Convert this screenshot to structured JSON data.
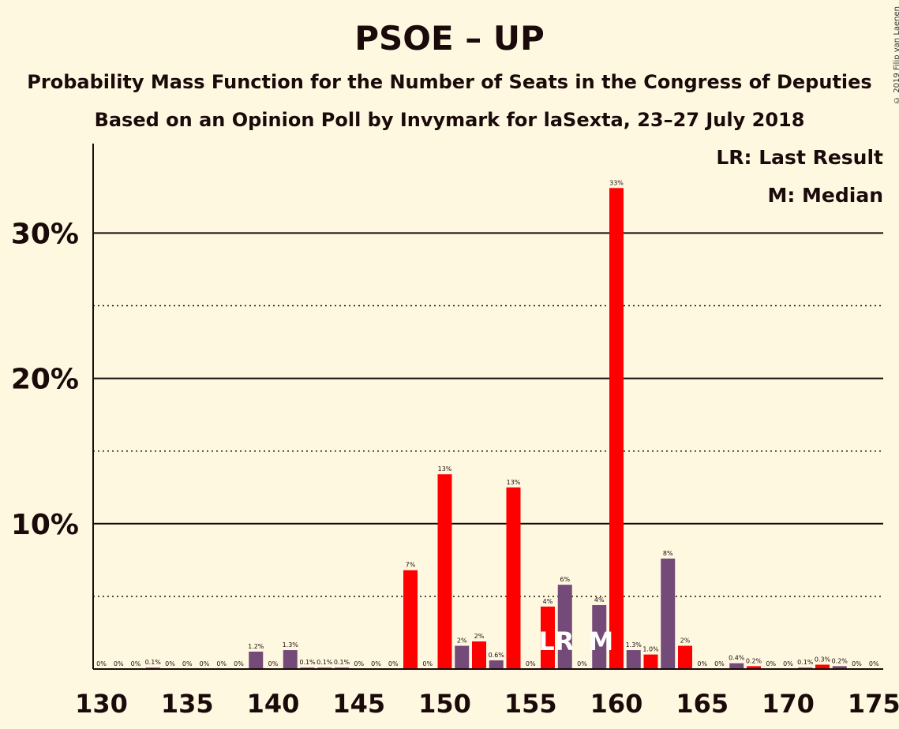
{
  "title": "PSOE – UP",
  "subtitle1": "Probability Mass Function for the Number of Seats in the Congress of Deputies",
  "subtitle2": "Based on an Opinion Poll by Invymark for laSexta, 23–27 July 2018",
  "copyright": "© 2019 Filip van Laenen",
  "legend": {
    "lr": "LR: Last Result",
    "m": "M: Median"
  },
  "colors": {
    "red": "#FF0000",
    "purple": "#744B78",
    "background": "#FFF8E1",
    "text": "#1a0a0a"
  },
  "chart_data": {
    "type": "bar",
    "x_ticks": [
      130,
      135,
      140,
      145,
      150,
      155,
      160,
      165,
      170,
      175
    ],
    "y_ticks": [
      {
        "value": 10,
        "label": "10%"
      },
      {
        "value": 20,
        "label": "20%"
      },
      {
        "value": 30,
        "label": "30%"
      }
    ],
    "ylim": [
      0,
      36
    ],
    "xlim": [
      129.5,
      175.5
    ],
    "grid": "solid at 10%, 20%, 30%; dotted at 5%, 15%, 25%",
    "last_result_seat": 156,
    "median_seat": 159,
    "last_result_marker": "LR",
    "median_marker": "M",
    "bars": [
      {
        "seats": 130,
        "value": 0,
        "label": "0%",
        "color": "purple"
      },
      {
        "seats": 131,
        "value": 0,
        "label": "0%",
        "color": "purple"
      },
      {
        "seats": 132,
        "value": 0,
        "label": "0%",
        "color": "purple"
      },
      {
        "seats": 133,
        "value": 0.1,
        "label": "0.1%",
        "color": "purple"
      },
      {
        "seats": 134,
        "value": 0,
        "label": "0%",
        "color": "purple"
      },
      {
        "seats": 135,
        "value": 0,
        "label": "0%",
        "color": "purple"
      },
      {
        "seats": 136,
        "value": 0,
        "label": "0%",
        "color": "purple"
      },
      {
        "seats": 137,
        "value": 0,
        "label": "0%",
        "color": "purple"
      },
      {
        "seats": 138,
        "value": 0,
        "label": "0%",
        "color": "purple"
      },
      {
        "seats": 139,
        "value": 1.2,
        "label": "1.2%",
        "color": "purple"
      },
      {
        "seats": 140,
        "value": 0,
        "label": "0%",
        "color": "purple"
      },
      {
        "seats": 141,
        "value": 1.3,
        "label": "1.3%",
        "color": "purple"
      },
      {
        "seats": 142,
        "value": 0.1,
        "label": "0.1%",
        "color": "purple"
      },
      {
        "seats": 143,
        "value": 0.1,
        "label": "0.1%",
        "color": "purple"
      },
      {
        "seats": 144,
        "value": 0.1,
        "label": "0.1%",
        "color": "purple"
      },
      {
        "seats": 145,
        "value": 0,
        "label": "0%",
        "color": "purple"
      },
      {
        "seats": 146,
        "value": 0,
        "label": "0%",
        "color": "purple"
      },
      {
        "seats": 147,
        "value": 0,
        "label": "0%",
        "color": "purple"
      },
      {
        "seats": 148,
        "value": 6.8,
        "label": "7%",
        "color": "red"
      },
      {
        "seats": 149,
        "value": 0,
        "label": "0%",
        "color": "purple"
      },
      {
        "seats": 150,
        "value": 13.4,
        "label": "13%",
        "color": "red"
      },
      {
        "seats": 151,
        "value": 1.6,
        "label": "2%",
        "color": "purple"
      },
      {
        "seats": 152,
        "value": 1.9,
        "label": "2%",
        "color": "red"
      },
      {
        "seats": 153,
        "value": 0.6,
        "label": "0.6%",
        "color": "purple"
      },
      {
        "seats": 154,
        "value": 12.5,
        "label": "13%",
        "color": "red"
      },
      {
        "seats": 155,
        "value": 0,
        "label": "0%",
        "color": "purple"
      },
      {
        "seats": 156,
        "value": 4.3,
        "label": "4%",
        "color": "red"
      },
      {
        "seats": 157,
        "value": 5.8,
        "label": "6%",
        "color": "purple"
      },
      {
        "seats": 158,
        "value": 0,
        "label": "0%",
        "color": "purple"
      },
      {
        "seats": 159,
        "value": 4.4,
        "label": "4%",
        "color": "purple"
      },
      {
        "seats": 160,
        "value": 33.1,
        "label": "33%",
        "color": "red"
      },
      {
        "seats": 161,
        "value": 1.3,
        "label": "1.3%",
        "color": "purple"
      },
      {
        "seats": 162,
        "value": 1.0,
        "label": "1.0%",
        "color": "red"
      },
      {
        "seats": 163,
        "value": 7.6,
        "label": "8%",
        "color": "purple"
      },
      {
        "seats": 164,
        "value": 1.6,
        "label": "2%",
        "color": "red"
      },
      {
        "seats": 165,
        "value": 0,
        "label": "0%",
        "color": "purple"
      },
      {
        "seats": 166,
        "value": 0,
        "label": "0%",
        "color": "purple"
      },
      {
        "seats": 167,
        "value": 0.4,
        "label": "0.4%",
        "color": "purple"
      },
      {
        "seats": 168,
        "value": 0.2,
        "label": "0.2%",
        "color": "red"
      },
      {
        "seats": 169,
        "value": 0,
        "label": "0%",
        "color": "purple"
      },
      {
        "seats": 170,
        "value": 0,
        "label": "0%",
        "color": "purple"
      },
      {
        "seats": 171,
        "value": 0.1,
        "label": "0.1%",
        "color": "purple"
      },
      {
        "seats": 172,
        "value": 0.3,
        "label": "0.3%",
        "color": "red"
      },
      {
        "seats": 173,
        "value": 0.2,
        "label": "0.2%",
        "color": "purple"
      },
      {
        "seats": 174,
        "value": 0,
        "label": "0%",
        "color": "purple"
      },
      {
        "seats": 175,
        "value": 0,
        "label": "0%",
        "color": "purple"
      }
    ]
  }
}
